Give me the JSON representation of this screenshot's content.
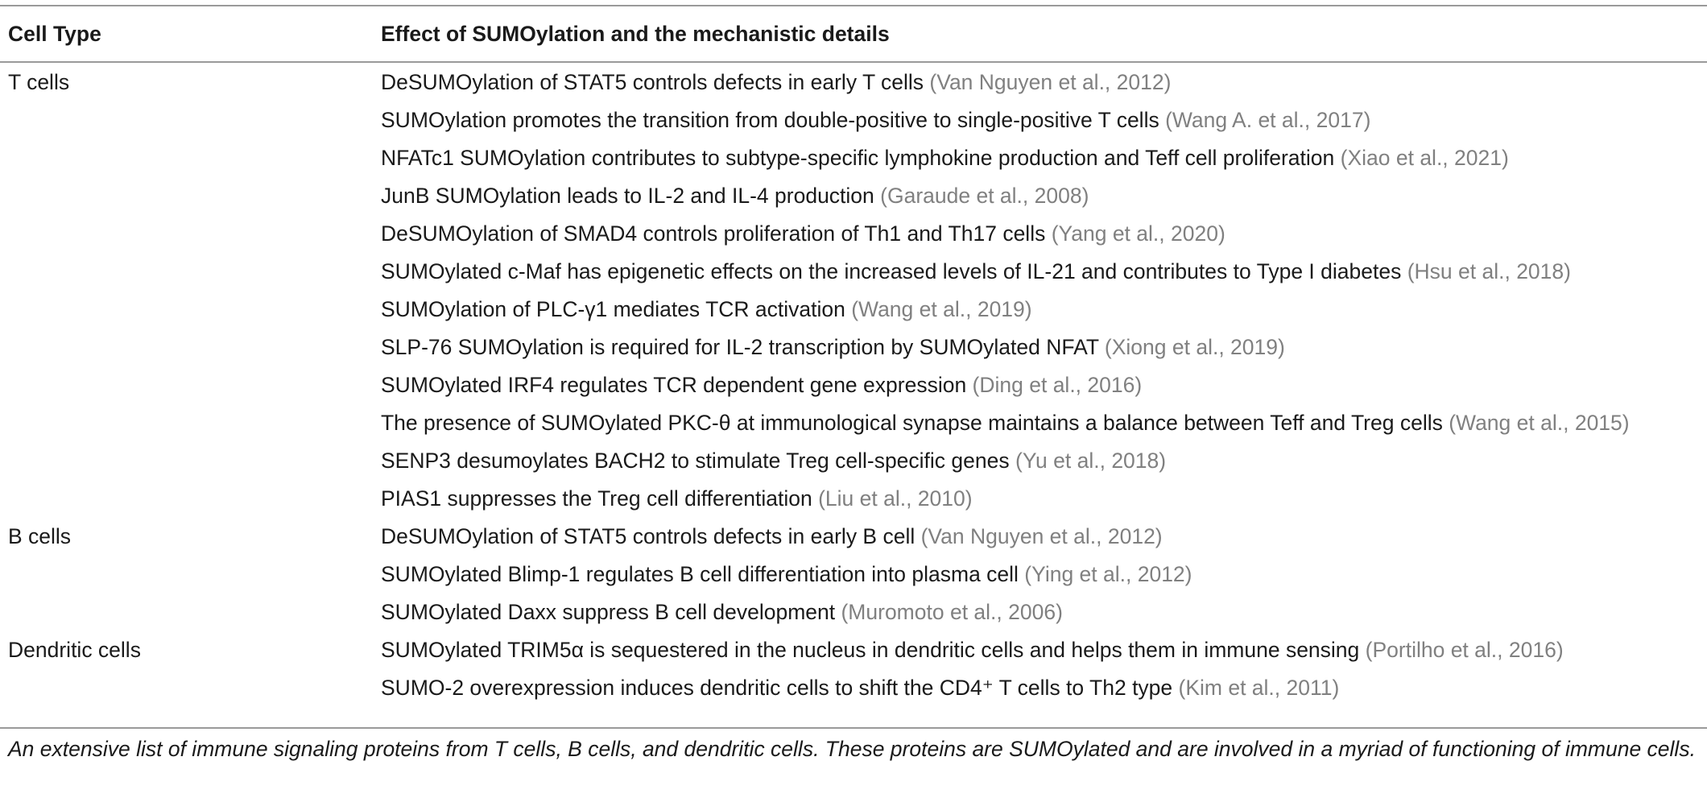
{
  "table": {
    "headers": {
      "cell_type": "Cell Type",
      "effect": "Effect of SUMOylation and the mechanistic details"
    },
    "rows": [
      {
        "cell_type": "T cells",
        "text": "DeSUMOylation of STAT5 controls defects in early T cells ",
        "cite": "(Van Nguyen et al., 2012)"
      },
      {
        "cell_type": "",
        "text": "SUMOylation promotes the transition from double-positive to single-positive T cells ",
        "cite": "(Wang A. et al., 2017)"
      },
      {
        "cell_type": "",
        "text": "NFATc1 SUMOylation contributes to subtype-specific lymphokine production and Teff cell proliferation ",
        "cite": "(Xiao et al., 2021)"
      },
      {
        "cell_type": "",
        "text": "JunB SUMOylation leads to IL-2 and IL-4 production ",
        "cite": "(Garaude et al., 2008)"
      },
      {
        "cell_type": "",
        "text": "DeSUMOylation of SMAD4 controls proliferation of Th1 and Th17 cells ",
        "cite": "(Yang et al., 2020)"
      },
      {
        "cell_type": "",
        "text": "SUMOylated c-Maf has epigenetic effects on the increased levels of IL-21 and contributes to Type I diabetes ",
        "cite": "(Hsu et al., 2018)"
      },
      {
        "cell_type": "",
        "text": "SUMOylation of PLC-γ1 mediates TCR activation ",
        "cite": "(Wang et al., 2019)"
      },
      {
        "cell_type": "",
        "text": "SLP-76 SUMOylation is required for IL-2 transcription by SUMOylated NFAT ",
        "cite": "(Xiong et al., 2019)"
      },
      {
        "cell_type": "",
        "text": "SUMOylated IRF4 regulates TCR dependent gene expression ",
        "cite": "(Ding et al., 2016)"
      },
      {
        "cell_type": "",
        "text": "The presence of SUMOylated PKC-θ at immunological synapse maintains a balance between Teff and Treg cells ",
        "cite": "(Wang et al., 2015)"
      },
      {
        "cell_type": "",
        "text": "SENP3 desumoylates BACH2 to stimulate Treg cell-specific genes ",
        "cite": "(Yu et al., 2018)"
      },
      {
        "cell_type": "",
        "text": "PIAS1 suppresses the Treg cell differentiation ",
        "cite": "(Liu et al., 2010)"
      },
      {
        "cell_type": "B cells",
        "text": "DeSUMOylation of STAT5 controls defects in early B cell ",
        "cite": "(Van Nguyen et al., 2012)"
      },
      {
        "cell_type": "",
        "text": "SUMOylated Blimp-1 regulates B cell differentiation into plasma cell ",
        "cite": "(Ying et al., 2012)"
      },
      {
        "cell_type": "",
        "text": "SUMOylated Daxx suppress B cell development ",
        "cite": "(Muromoto et al., 2006)"
      },
      {
        "cell_type": "Dendritic cells",
        "text": "SUMOylated TRIM5α is sequestered in the nucleus in dendritic cells and helps them in immune sensing ",
        "cite": "(Portilho et al., 2016)"
      },
      {
        "cell_type": "",
        "text": "SUMO-2 overexpression induces dendritic cells to shift the CD4⁺ T cells to Th2 type ",
        "cite": "(Kim et al., 2011)"
      }
    ]
  },
  "footnote": "An extensive list of immune signaling proteins from T cells, B cells, and dendritic cells. These proteins are SUMOylated and are involved in a myriad of functioning of immune cells.",
  "colors": {
    "text": "#1a1a1a",
    "citation": "#808080",
    "rule": "#9a9a9a"
  }
}
